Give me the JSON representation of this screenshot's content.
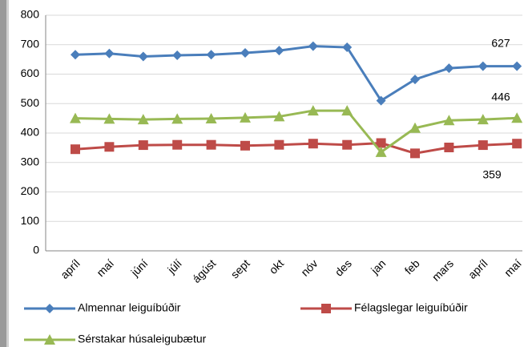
{
  "chart_data": {
    "type": "line",
    "categories": [
      "apríl",
      "maí",
      "júní",
      "júlí",
      "ágúst",
      "sept",
      "okt",
      "nóv",
      "des",
      "jan",
      "feb",
      "mars",
      "apríl",
      "maí"
    ],
    "series": [
      {
        "name": "Almennar leiguíbúðir",
        "color": "#4a7ebb",
        "marker": "diamond",
        "values": [
          666,
          670,
          660,
          664,
          666,
          672,
          680,
          695,
          691,
          510,
          582,
          620,
          627,
          627
        ]
      },
      {
        "name": "Félagslegar leiguíbúðir",
        "color": "#be4b48",
        "marker": "square",
        "values": [
          345,
          353,
          359,
          360,
          360,
          357,
          360,
          364,
          360,
          366,
          331,
          351,
          359,
          364
        ]
      },
      {
        "name": "Sérstakar húsaleigubætur",
        "color": "#98b954",
        "marker": "triangle",
        "values": [
          450,
          448,
          446,
          448,
          449,
          452,
          456,
          476,
          476,
          335,
          417,
          443,
          446,
          451
        ]
      }
    ],
    "annotations": [
      "627",
      "446",
      "359"
    ],
    "ylim": [
      0,
      800
    ],
    "yticks": [
      0,
      100,
      200,
      300,
      400,
      500,
      600,
      700,
      800
    ],
    "grid": true
  }
}
